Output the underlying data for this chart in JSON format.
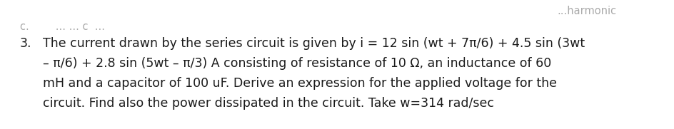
{
  "background_color": "#ffffff",
  "top_right_text": "...harmonic",
  "line_c_text": "c.        ... ... c  ...",
  "number": "3.",
  "line1": "The current drawn by the series circuit is given by i = 12 sin (wt + 7π/6) + 4.5 sin (3wt",
  "line2": "– π/6) + 2.8 sin (5wt – π/3) A consisting of resistance of 10 Ω, an inductance of 60",
  "line3": "mH and a capacitor of 100 uF. Derive an expression for the applied voltage for the",
  "line4": "circuit. Find also the power dissipated in the circuit. Take w=314 rad/sec",
  "font_size": 12.5,
  "text_color": "#1a1a1a",
  "dim_text_color": "#aaaaaa",
  "fig_width": 9.45,
  "fig_height": 1.81,
  "dpi": 100
}
